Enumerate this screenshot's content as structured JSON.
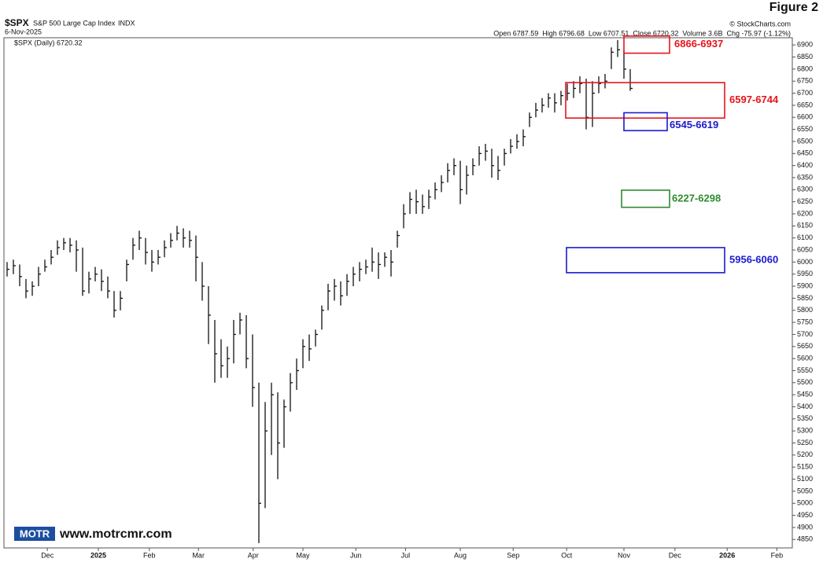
{
  "chart_data": {
    "type": "ohlc",
    "figure_label": "Figure 2",
    "symbol": "$SPX",
    "name": "S&P 500 Large Cap Index",
    "exchange": "INDX",
    "date": "6-Nov-2025",
    "source": "© StockCharts.com",
    "quote": "Open 6787.59  High 6796.68  Low 6707.51  Close 6720.32  Volume 3.6B  Chg -75.97 (-1.12%)",
    "legend": "$SPX (Daily) 6720.32",
    "watermark": "www.motrcmr.com",
    "logo": "MOTR",
    "color": "#111111",
    "high": [
      6000,
      6010,
      5990,
      5930,
      5920,
      5980,
      6010,
      6050,
      6090,
      6100,
      6100,
      6090,
      6060,
      5960,
      5980,
      5970,
      5940,
      5880,
      5880,
      6010,
      6100,
      6130,
      6100,
      6050,
      6050,
      6090,
      6120,
      6150,
      6140,
      6130,
      6110,
      6000,
      5900,
      5760,
      5680,
      5650,
      5760,
      5790,
      5780,
      5700,
      5500,
      5420,
      5500,
      5460,
      5430,
      5540,
      5600,
      5680,
      5700,
      5720,
      5820,
      5910,
      5930,
      5920,
      5950,
      5980,
      6000,
      6010,
      6060,
      6040,
      6040,
      6050,
      6130,
      6240,
      6290,
      6300,
      6280,
      6300,
      6330,
      6360,
      6410,
      6430,
      6420,
      6400,
      6430,
      6480,
      6490,
      6470,
      6440,
      6470,
      6510,
      6530,
      6550,
      6620,
      6660,
      6680,
      6700,
      6700,
      6710,
      6740,
      6750,
      6770,
      6760,
      6750,
      6770,
      6780,
      6890,
      6920,
      6880,
      6800
    ],
    "low": [
      5940,
      5950,
      5900,
      5850,
      5860,
      5900,
      5960,
      5990,
      6030,
      6050,
      6040,
      5960,
      5860,
      5870,
      5920,
      5880,
      5850,
      5770,
      5800,
      5920,
      6010,
      6050,
      5990,
      5960,
      5990,
      6020,
      6060,
      6090,
      6060,
      6060,
      5920,
      5840,
      5660,
      5500,
      5520,
      5520,
      5580,
      5700,
      5560,
      5400,
      4835,
      4980,
      5200,
      5100,
      5230,
      5380,
      5470,
      5560,
      5590,
      5650,
      5720,
      5800,
      5840,
      5820,
      5860,
      5900,
      5920,
      5950,
      5960,
      5930,
      5980,
      5940,
      6060,
      6140,
      6200,
      6200,
      6200,
      6220,
      6260,
      6290,
      6330,
      6360,
      6240,
      6280,
      6360,
      6400,
      6420,
      6350,
      6340,
      6400,
      6450,
      6470,
      6480,
      6560,
      6600,
      6620,
      6640,
      6620,
      6650,
      6670,
      6680,
      6700,
      6550,
      6560,
      6700,
      6720,
      6800,
      6850,
      6760,
      6710
    ],
    "close": [
      5970,
      5985,
      5940,
      5880,
      5900,
      5950,
      5980,
      6020,
      6060,
      6080,
      6070,
      6050,
      5880,
      5930,
      5950,
      5920,
      5880,
      5800,
      5850,
      5990,
      6070,
      6100,
      6040,
      6000,
      6020,
      6060,
      6090,
      6120,
      6100,
      6090,
      6020,
      5900,
      5780,
      5620,
      5570,
      5600,
      5700,
      5760,
      5600,
      5480,
      5000,
      5300,
      5450,
      5250,
      5400,
      5500,
      5550,
      5650,
      5640,
      5700,
      5800,
      5880,
      5900,
      5860,
      5920,
      5950,
      5970,
      5980,
      6000,
      5990,
      6020,
      6000,
      6110,
      6200,
      6260,
      6250,
      6230,
      6270,
      6300,
      6330,
      6380,
      6400,
      6300,
      6360,
      6400,
      6450,
      6460,
      6400,
      6380,
      6450,
      6480,
      6500,
      6520,
      6600,
      6630,
      6650,
      6680,
      6660,
      6690,
      6700,
      6720,
      6740,
      6600,
      6700,
      6740,
      6750,
      6870,
      6880,
      6800,
      6720
    ],
    "zones": [
      {
        "label": "6866-6937",
        "low": 6866,
        "high": 6937,
        "color": "#e8141c"
      },
      {
        "label": "6597-6744",
        "low": 6597,
        "high": 6744,
        "color": "#e8141c"
      },
      {
        "label": "6545-6619",
        "low": 6545,
        "high": 6619,
        "color": "#1a1acc"
      },
      {
        "label": "6227-6298",
        "low": 6227,
        "high": 6298,
        "color": "#2e8b2e"
      },
      {
        "label": "5956-6060",
        "low": 5956,
        "high": 6060,
        "color": "#1a1acc"
      }
    ],
    "xlim": [
      -0.5,
      124.75
    ],
    "xticks": [
      {
        "value": 6.4,
        "label": "Dec"
      },
      {
        "value": 14.5,
        "label": "2025"
      },
      {
        "value": 22.6,
        "label": "Feb"
      },
      {
        "value": 30.4,
        "label": "Mar"
      },
      {
        "value": 39.1,
        "label": "Apr"
      },
      {
        "value": 47,
        "label": "May"
      },
      {
        "value": 55.4,
        "label": "Jun"
      },
      {
        "value": 63.3,
        "label": "Jul"
      },
      {
        "value": 72,
        "label": "Aug"
      },
      {
        "value": 80.4,
        "label": "Sep"
      },
      {
        "value": 88.9,
        "label": "Oct"
      },
      {
        "value": 98,
        "label": "Nov"
      },
      {
        "value": 106.1,
        "label": "Dec"
      },
      {
        "value": 114.4,
        "label": "2026"
      },
      {
        "value": 122.3,
        "label": "Feb"
      }
    ],
    "ylim": [
      4815,
      6930
    ],
    "yticks": [
      4850,
      4900,
      4950,
      5000,
      5050,
      5100,
      5150,
      5200,
      5250,
      5300,
      5350,
      5400,
      5450,
      5500,
      5550,
      5600,
      5650,
      5700,
      5750,
      5800,
      5850,
      5900,
      5950,
      6000,
      6050,
      6100,
      6150,
      6200,
      6250,
      6300,
      6350,
      6400,
      6450,
      6500,
      6550,
      6600,
      6650,
      6700,
      6750,
      6800,
      6850,
      6900
    ]
  }
}
